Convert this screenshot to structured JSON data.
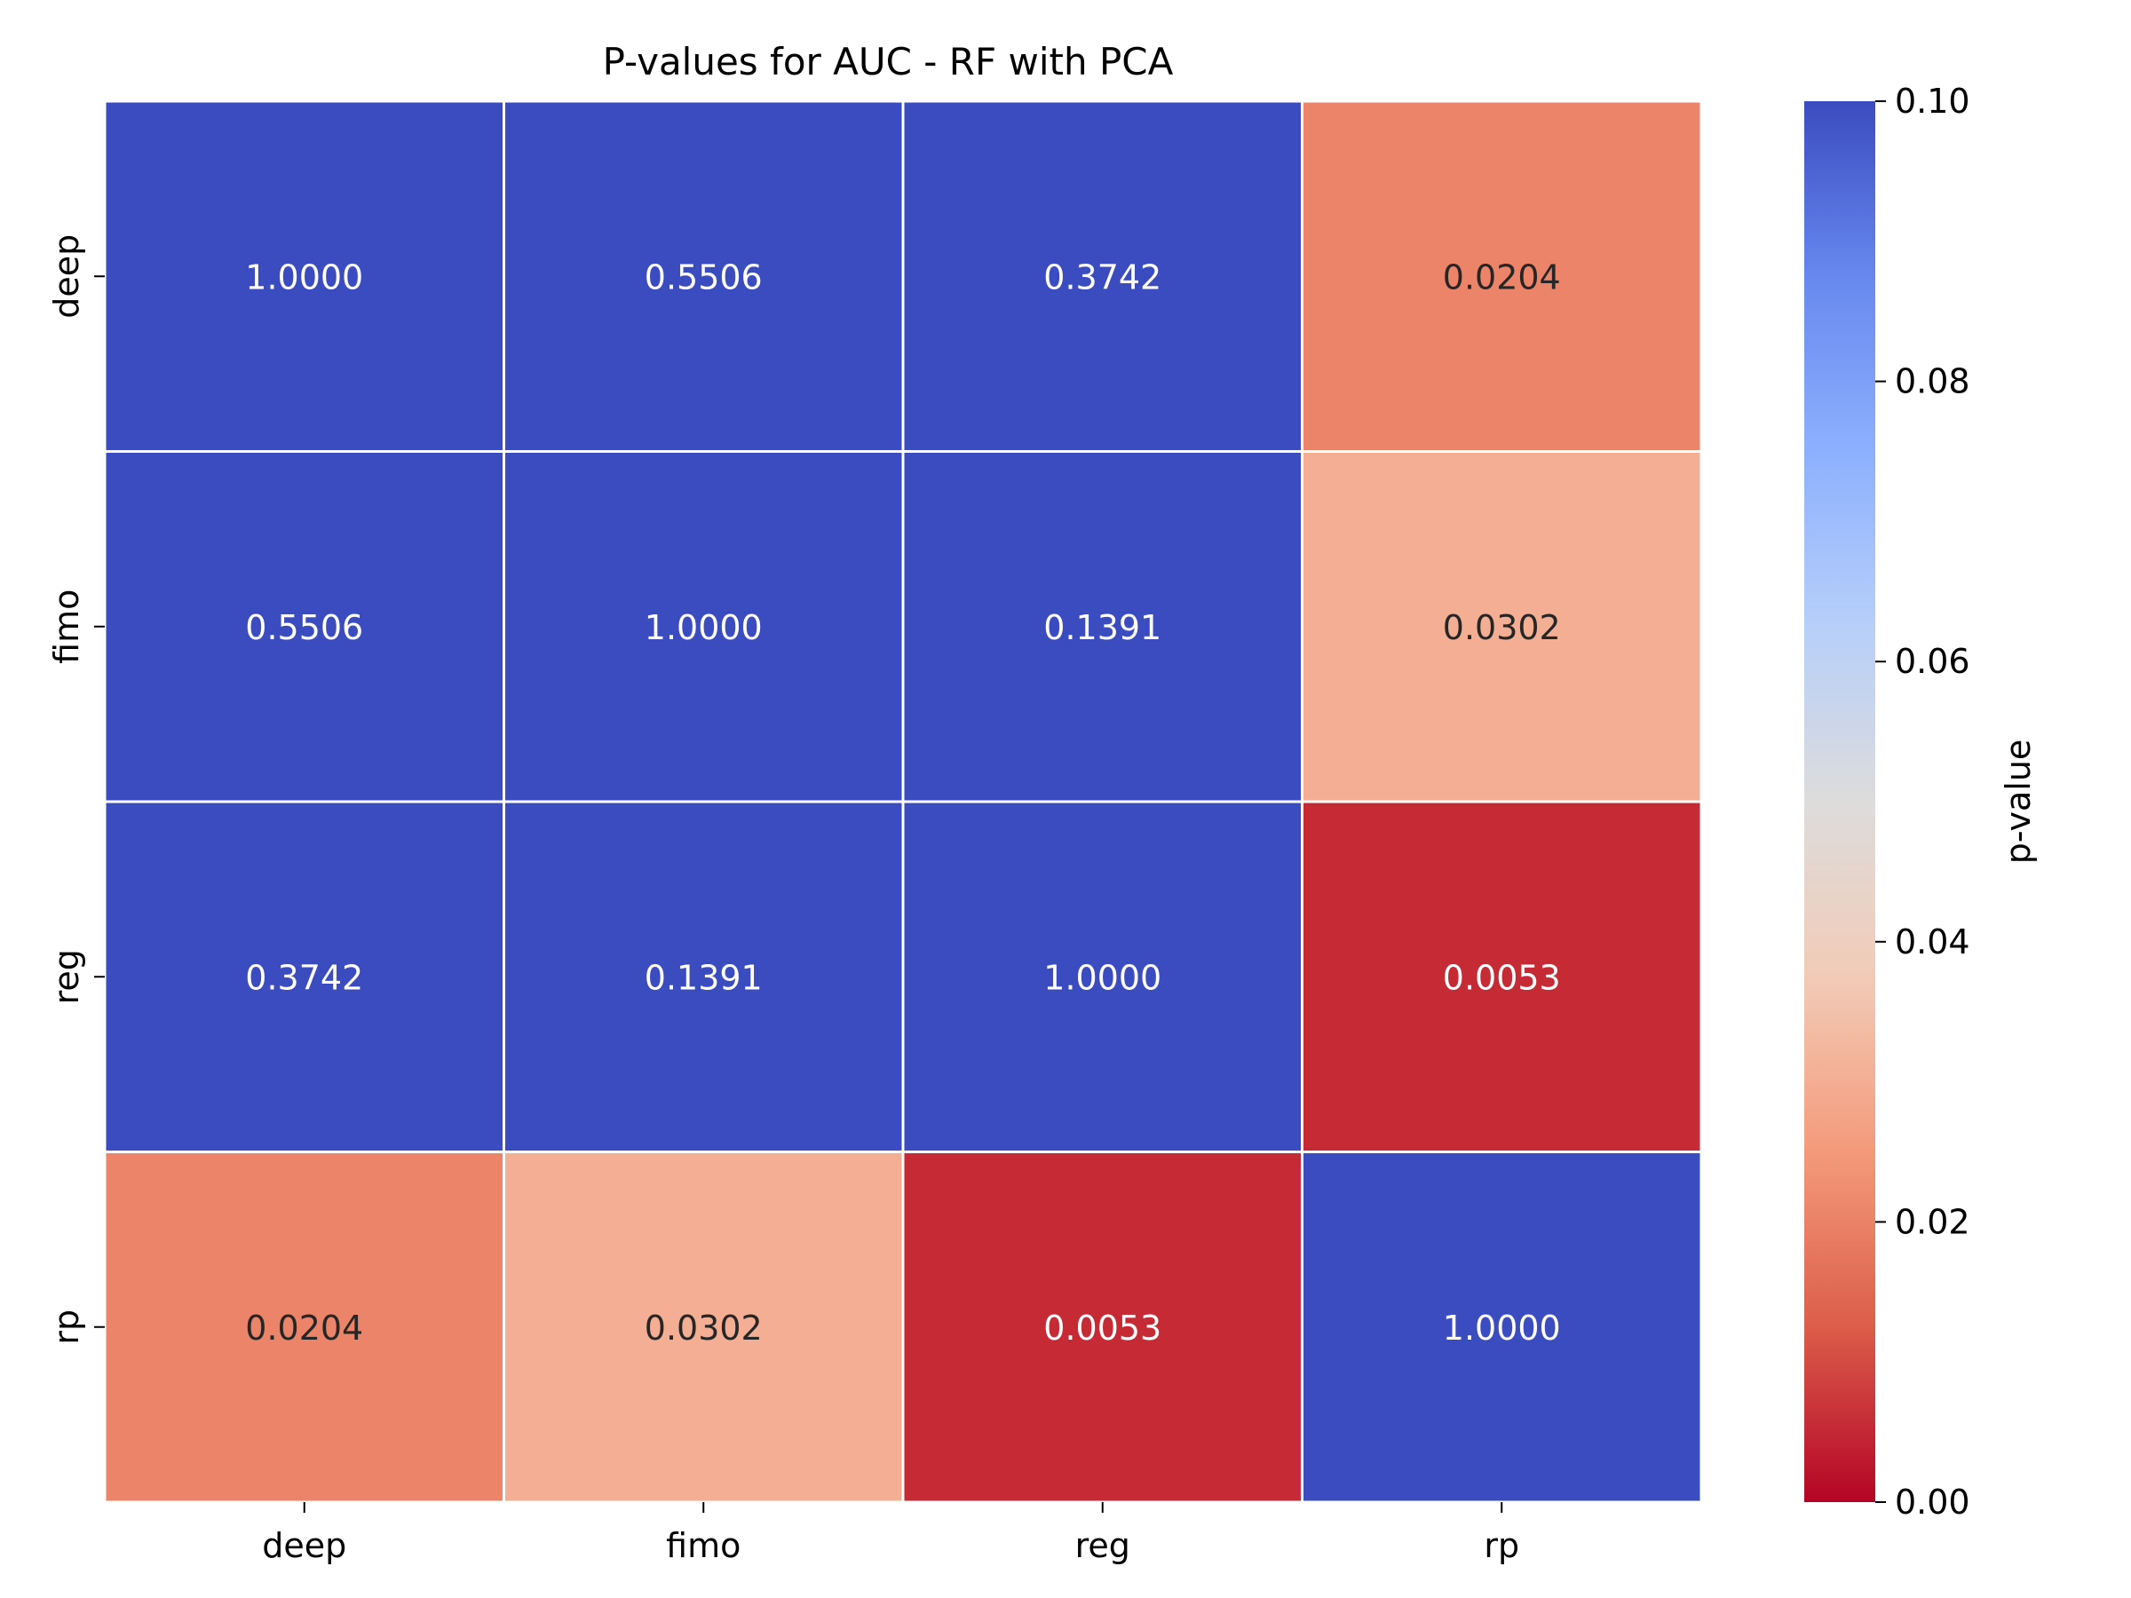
{
  "chart_data": {
    "type": "heatmap",
    "title": "P-values for AUC - RF with PCA",
    "xlabel": "",
    "ylabel": "",
    "x_categories": [
      "deep",
      "fimo",
      "reg",
      "rp"
    ],
    "y_categories": [
      "deep",
      "fimo",
      "reg",
      "rp"
    ],
    "values": [
      [
        1.0,
        0.5506,
        0.3742,
        0.0204
      ],
      [
        0.5506,
        1.0,
        0.1391,
        0.0302
      ],
      [
        0.3742,
        0.1391,
        1.0,
        0.0053
      ],
      [
        0.0204,
        0.0302,
        0.0053,
        1.0
      ]
    ],
    "cell_labels": [
      [
        "1.0000",
        "0.5506",
        "0.3742",
        "0.0204"
      ],
      [
        "0.5506",
        "1.0000",
        "0.1391",
        "0.0302"
      ],
      [
        "0.3742",
        "0.1391",
        "1.0000",
        "0.0053"
      ],
      [
        "0.0204",
        "0.0302",
        "0.0053",
        "1.0000"
      ]
    ],
    "colorbar": {
      "label": "p-value",
      "range": [
        0.0,
        0.1
      ],
      "ticks": [
        "0.00",
        "0.02",
        "0.04",
        "0.06",
        "0.08",
        "0.10"
      ],
      "colormap": "coolwarm_r",
      "stops": [
        "#b40426",
        "#dc5d4a",
        "#f49a7b",
        "#f2cbb7",
        "#dddcdc",
        "#b7cff9",
        "#8db0fe",
        "#6788ee",
        "#3b4cc0"
      ]
    },
    "grid": true,
    "cell_border_color": "#ffffff",
    "legend": "colorbar-right"
  }
}
